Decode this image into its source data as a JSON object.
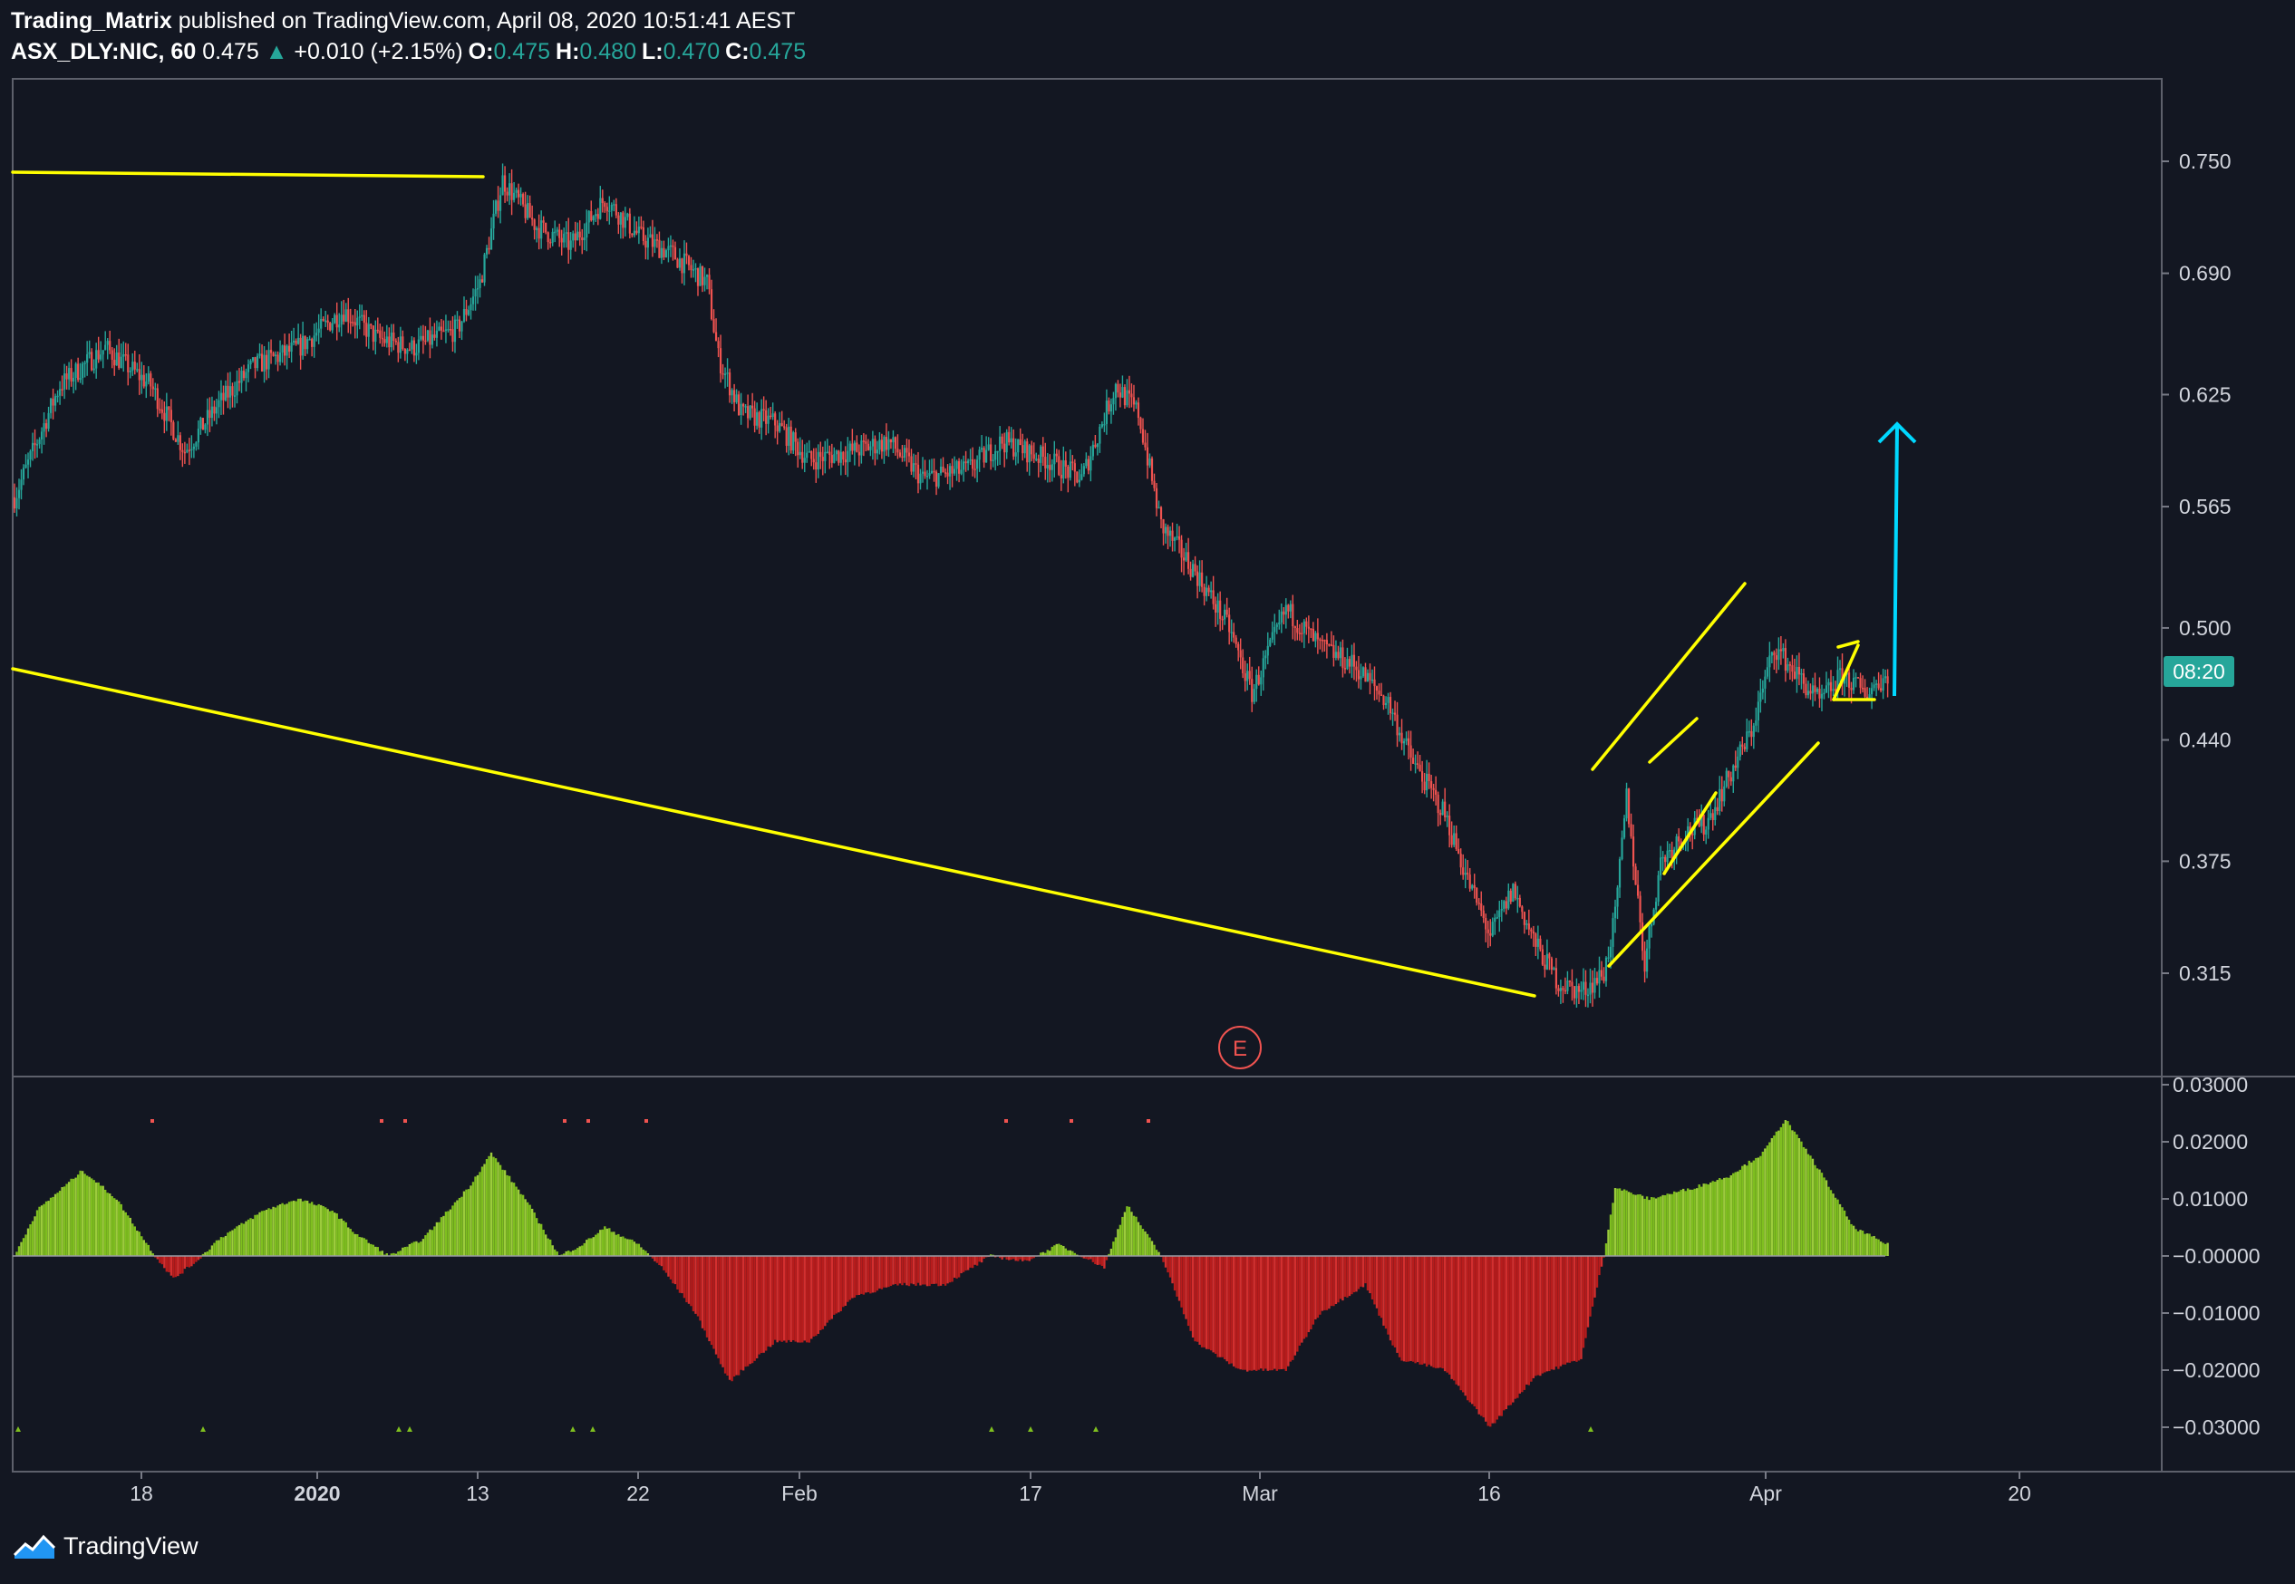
{
  "header": {
    "author": "Trading_Matrix",
    "published_text": "published on TradingView.com, April 08, 2020 10:51:41 AEST",
    "symbol": "ASX_DLY:NIC, 60",
    "last": "0.475",
    "change_arrow": "▲",
    "change": "+0.010 (+2.15%)",
    "open_label": "O:",
    "open": "0.475",
    "high_label": "H:",
    "high": "0.480",
    "low_label": "L:",
    "low": "0.470",
    "close_label": "C:",
    "close": "0.475"
  },
  "footer": {
    "brand": "TradingView",
    "logo_icon": "tradingview-logo-icon"
  },
  "colors": {
    "background": "#131722",
    "up": "#26a69a",
    "down": "#ef5350",
    "trendline": "#ffff00",
    "target_arrow": "#00d8ff",
    "osc_pos": "#7fbf1f",
    "osc_neg": "#b71c1c",
    "countdown_bg": "#26a69a"
  },
  "price_axis": {
    "ticks": [
      "0.750",
      "0.690",
      "0.625",
      "0.565",
      "0.500",
      "0.440",
      "0.375",
      "0.315"
    ],
    "countdown": "08:20"
  },
  "osc_axis": {
    "ticks": [
      "0.03000",
      "0.02000",
      "0.01000",
      "−0.00000",
      "−0.01000",
      "−0.02000",
      "−0.03000"
    ]
  },
  "time_axis": {
    "ticks": [
      "18",
      "2020",
      "13",
      "22",
      "Feb",
      "17",
      "Mar",
      "16",
      "Apr",
      "20"
    ]
  },
  "event_marker": {
    "label": "E"
  },
  "chart_data": [
    {
      "type": "candlestick",
      "symbol": "ASX_DLY:NIC",
      "interval": "60",
      "ylim": [
        0.27,
        0.8
      ],
      "price_path": [
        {
          "x": 0,
          "y": 0.57
        },
        {
          "x": 20,
          "y": 0.63
        },
        {
          "x": 40,
          "y": 0.65
        },
        {
          "x": 60,
          "y": 0.63
        },
        {
          "x": 75,
          "y": 0.595
        },
        {
          "x": 90,
          "y": 0.62
        },
        {
          "x": 105,
          "y": 0.64
        },
        {
          "x": 125,
          "y": 0.65
        },
        {
          "x": 145,
          "y": 0.67
        },
        {
          "x": 160,
          "y": 0.655
        },
        {
          "x": 175,
          "y": 0.65
        },
        {
          "x": 195,
          "y": 0.66
        },
        {
          "x": 205,
          "y": 0.685
        },
        {
          "x": 215,
          "y": 0.74
        },
        {
          "x": 230,
          "y": 0.715
        },
        {
          "x": 245,
          "y": 0.705
        },
        {
          "x": 260,
          "y": 0.73
        },
        {
          "x": 275,
          "y": 0.71
        },
        {
          "x": 290,
          "y": 0.7
        },
        {
          "x": 305,
          "y": 0.685
        },
        {
          "x": 310,
          "y": 0.645
        },
        {
          "x": 320,
          "y": 0.615
        },
        {
          "x": 335,
          "y": 0.61
        },
        {
          "x": 350,
          "y": 0.59
        },
        {
          "x": 370,
          "y": 0.595
        },
        {
          "x": 385,
          "y": 0.6
        },
        {
          "x": 400,
          "y": 0.58
        },
        {
          "x": 420,
          "y": 0.585
        },
        {
          "x": 435,
          "y": 0.6
        },
        {
          "x": 455,
          "y": 0.59
        },
        {
          "x": 470,
          "y": 0.58
        },
        {
          "x": 485,
          "y": 0.63
        },
        {
          "x": 495,
          "y": 0.615
        },
        {
          "x": 505,
          "y": 0.555
        },
        {
          "x": 520,
          "y": 0.53
        },
        {
          "x": 535,
          "y": 0.5
        },
        {
          "x": 545,
          "y": 0.465
        },
        {
          "x": 560,
          "y": 0.51
        },
        {
          "x": 575,
          "y": 0.49
        },
        {
          "x": 590,
          "y": 0.48
        },
        {
          "x": 605,
          "y": 0.46
        },
        {
          "x": 615,
          "y": 0.43
        },
        {
          "x": 630,
          "y": 0.4
        },
        {
          "x": 640,
          "y": 0.365
        },
        {
          "x": 650,
          "y": 0.335
        },
        {
          "x": 660,
          "y": 0.36
        },
        {
          "x": 670,
          "y": 0.33
        },
        {
          "x": 680,
          "y": 0.31
        },
        {
          "x": 690,
          "y": 0.305
        },
        {
          "x": 700,
          "y": 0.315
        },
        {
          "x": 705,
          "y": 0.345
        },
        {
          "x": 710,
          "y": 0.41
        },
        {
          "x": 718,
          "y": 0.32
        },
        {
          "x": 725,
          "y": 0.375
        },
        {
          "x": 735,
          "y": 0.39
        },
        {
          "x": 745,
          "y": 0.395
        },
        {
          "x": 755,
          "y": 0.42
        },
        {
          "x": 765,
          "y": 0.445
        },
        {
          "x": 775,
          "y": 0.49
        },
        {
          "x": 785,
          "y": 0.475
        },
        {
          "x": 795,
          "y": 0.46
        },
        {
          "x": 805,
          "y": 0.475
        },
        {
          "x": 815,
          "y": 0.465
        },
        {
          "x": 825,
          "y": 0.475
        }
      ]
    },
    {
      "type": "histogram",
      "name": "oscillator",
      "ylim": [
        -0.033,
        0.03
      ],
      "path": [
        {
          "x": 0,
          "y": 0.0
        },
        {
          "x": 10,
          "y": 0.008
        },
        {
          "x": 30,
          "y": 0.015
        },
        {
          "x": 45,
          "y": 0.01
        },
        {
          "x": 62,
          "y": 0.0
        },
        {
          "x": 70,
          "y": -0.004
        },
        {
          "x": 80,
          "y": -0.001
        },
        {
          "x": 90,
          "y": 0.003
        },
        {
          "x": 110,
          "y": 0.008
        },
        {
          "x": 125,
          "y": 0.01
        },
        {
          "x": 140,
          "y": 0.008
        },
        {
          "x": 150,
          "y": 0.004
        },
        {
          "x": 165,
          "y": 0.0
        },
        {
          "x": 180,
          "y": 0.003
        },
        {
          "x": 200,
          "y": 0.012
        },
        {
          "x": 210,
          "y": 0.018
        },
        {
          "x": 225,
          "y": 0.01
        },
        {
          "x": 240,
          "y": 0.0
        },
        {
          "x": 250,
          "y": 0.002
        },
        {
          "x": 260,
          "y": 0.005
        },
        {
          "x": 275,
          "y": 0.002
        },
        {
          "x": 285,
          "y": -0.002
        },
        {
          "x": 300,
          "y": -0.01
        },
        {
          "x": 315,
          "y": -0.022
        },
        {
          "x": 335,
          "y": -0.015
        },
        {
          "x": 350,
          "y": -0.015
        },
        {
          "x": 370,
          "y": -0.007
        },
        {
          "x": 390,
          "y": -0.005
        },
        {
          "x": 410,
          "y": -0.005
        },
        {
          "x": 430,
          "y": 0.0
        },
        {
          "x": 445,
          "y": -0.001
        },
        {
          "x": 460,
          "y": 0.002
        },
        {
          "x": 470,
          "y": 0.0
        },
        {
          "x": 480,
          "y": -0.002
        },
        {
          "x": 490,
          "y": 0.009
        },
        {
          "x": 505,
          "y": 0.0
        },
        {
          "x": 520,
          "y": -0.015
        },
        {
          "x": 540,
          "y": -0.02
        },
        {
          "x": 560,
          "y": -0.02
        },
        {
          "x": 575,
          "y": -0.01
        },
        {
          "x": 595,
          "y": -0.005
        },
        {
          "x": 610,
          "y": -0.018
        },
        {
          "x": 630,
          "y": -0.02
        },
        {
          "x": 650,
          "y": -0.03
        },
        {
          "x": 670,
          "y": -0.021
        },
        {
          "x": 690,
          "y": -0.018
        },
        {
          "x": 700,
          "y": 0.0
        },
        {
          "x": 705,
          "y": 0.012
        },
        {
          "x": 720,
          "y": 0.01
        },
        {
          "x": 740,
          "y": 0.012
        },
        {
          "x": 755,
          "y": 0.014
        },
        {
          "x": 770,
          "y": 0.018
        },
        {
          "x": 780,
          "y": 0.024
        },
        {
          "x": 795,
          "y": 0.015
        },
        {
          "x": 810,
          "y": 0.005
        },
        {
          "x": 825,
          "y": 0.002
        }
      ]
    }
  ]
}
